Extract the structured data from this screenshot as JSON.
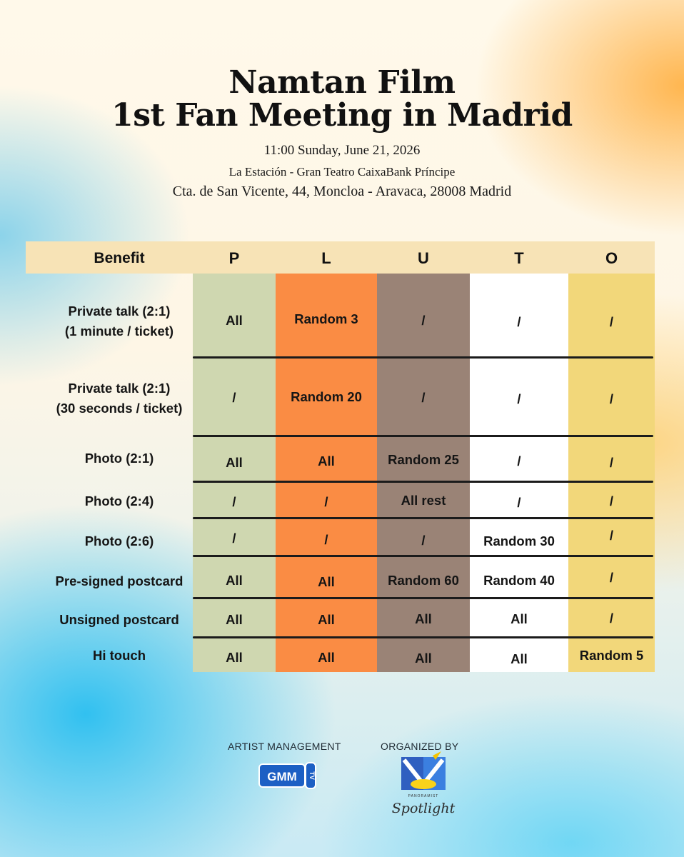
{
  "title": {
    "line1": "Namtan Film",
    "line2": "1st Fan Meeting in Madrid"
  },
  "event": {
    "datetime": "11:00 Sunday, June 21, 2026",
    "venue": "La Estación - Gran Teatro CaixaBank Príncipe",
    "address": "Cta. de San Vicente, 44, Moncloa - Aravaca, 28008 Madrid"
  },
  "table": {
    "headers": [
      "Benefit",
      "P",
      "L",
      "U",
      "T",
      "O"
    ],
    "column_colors": [
      "#cfd7b0",
      "#fa8c44",
      "#9a8376",
      "#ffffff",
      "#f2d77a"
    ],
    "header_color": "#f7e3b6",
    "rows": [
      {
        "benefit": [
          "Private talk (2:1)",
          "(1 minute / ticket)"
        ],
        "values": [
          "All",
          "Random 3",
          "/",
          "/",
          "/"
        ]
      },
      {
        "benefit": [
          "Private talk (2:1)",
          "(30 seconds / ticket)"
        ],
        "values": [
          "/",
          "Random 20",
          "/",
          "/",
          "/"
        ]
      },
      {
        "benefit": [
          "Photo (2:1)"
        ],
        "values": [
          "All",
          "All",
          "Random 25",
          "/",
          "/"
        ]
      },
      {
        "benefit": [
          "Photo (2:4)"
        ],
        "values": [
          "/",
          "/",
          "All rest",
          "/",
          "/"
        ]
      },
      {
        "benefit": [
          "Photo (2:6)"
        ],
        "values": [
          "/",
          "/",
          "/",
          "Random 30",
          "/"
        ]
      },
      {
        "benefit": [
          "Pre-signed postcard"
        ],
        "values": [
          "All",
          "All",
          "Random 60",
          "Random 40",
          "/"
        ]
      },
      {
        "benefit": [
          "Unsigned postcard"
        ],
        "values": [
          "All",
          "All",
          "All",
          "All",
          "/"
        ]
      },
      {
        "benefit": [
          "Hi touch"
        ],
        "values": [
          "All",
          "All",
          "All",
          "All",
          "Random 5"
        ]
      }
    ]
  },
  "footer": {
    "artist_management_label": "ARTIST MANAGEMENT",
    "organized_by_label": "ORGANIZED BY",
    "artist_logo_text": "GMM",
    "artist_logo_suffix": "TV",
    "organizer_logo_small": "PANORAMIST",
    "organizer_logo_text": "Spotlight"
  },
  "icons": [
    "gmm-tv-logo",
    "spotlight-logo"
  ]
}
